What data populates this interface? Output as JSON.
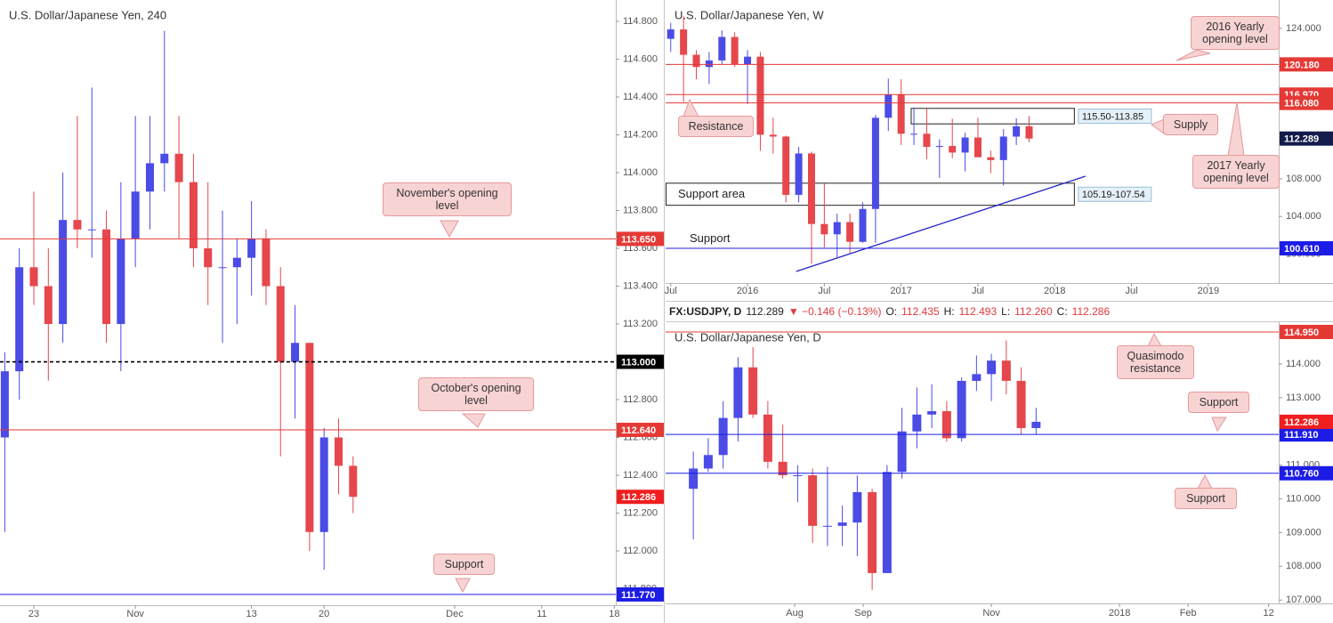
{
  "chart_data": [
    {
      "type": "candlestick",
      "title": "U.S. Dollar/Japanese Yen, 240",
      "xlim": [
        -2.33,
        40.1
      ],
      "ylim": [
        111.713,
        114.913
      ],
      "xticks": [
        {
          "value": 0,
          "label": "23"
        },
        {
          "value": 7,
          "label": "Nov"
        },
        {
          "value": 15,
          "label": "13"
        },
        {
          "value": 20,
          "label": "20"
        },
        {
          "value": 29,
          "label": "Dec"
        },
        {
          "value": 35,
          "label": "11"
        },
        {
          "value": 40,
          "label": "18"
        }
      ],
      "yticks": [
        {
          "value": 111.8,
          "label": "111.800"
        },
        {
          "value": 112.0,
          "label": "112.000"
        },
        {
          "value": 112.2,
          "label": "112.200"
        },
        {
          "value": 112.4,
          "label": "112.400"
        },
        {
          "value": 112.6,
          "label": "112.600"
        },
        {
          "value": 112.8,
          "label": "112.800"
        },
        {
          "value": 113.0,
          "label": "113.000"
        },
        {
          "value": 113.2,
          "label": "113.200"
        },
        {
          "value": 113.4,
          "label": "113.400"
        },
        {
          "value": 113.6,
          "label": "113.600"
        },
        {
          "value": 113.8,
          "label": "113.800"
        },
        {
          "value": 114.0,
          "label": "114.000"
        },
        {
          "value": 114.2,
          "label": "114.200"
        },
        {
          "value": 114.4,
          "label": "114.400"
        },
        {
          "value": 114.6,
          "label": "114.600"
        },
        {
          "value": 114.8,
          "label": "114.800"
        }
      ],
      "up_color": "#4b4be6",
      "down_color": "#e5474d",
      "candles": {
        "x": [
          -2,
          -1,
          0,
          1,
          2,
          3,
          4,
          5,
          6,
          7,
          8,
          9,
          10,
          11,
          12,
          13,
          14,
          15,
          16,
          17,
          18,
          19,
          20,
          21,
          22
        ],
        "open": [
          112.6,
          112.95,
          113.5,
          113.4,
          113.2,
          113.75,
          113.7,
          113.7,
          113.2,
          113.65,
          113.9,
          114.05,
          114.1,
          113.95,
          113.6,
          113.5,
          113.5,
          113.55,
          113.65,
          113.4,
          113.0,
          113.1,
          112.1,
          112.6,
          112.45
        ],
        "high": [
          113.05,
          113.6,
          113.9,
          113.6,
          114.0,
          114.3,
          114.45,
          113.8,
          113.95,
          114.3,
          114.3,
          114.75,
          114.3,
          114.1,
          113.95,
          113.8,
          113.65,
          113.85,
          113.7,
          113.5,
          113.3,
          113.1,
          112.65,
          112.7,
          112.5
        ],
        "low": [
          112.1,
          112.8,
          113.3,
          112.9,
          113.1,
          113.6,
          113.55,
          113.1,
          112.95,
          113.5,
          113.7,
          113.9,
          113.65,
          113.5,
          113.3,
          113.1,
          113.2,
          113.35,
          113.3,
          112.5,
          112.7,
          112.0,
          111.9,
          112.3,
          112.2
        ],
        "close": [
          112.95,
          113.5,
          113.4,
          113.2,
          113.75,
          113.7,
          113.7,
          113.2,
          113.65,
          113.9,
          114.05,
          114.1,
          113.95,
          113.6,
          113.5,
          113.5,
          113.55,
          113.65,
          113.4,
          113.0,
          113.1,
          112.1,
          112.6,
          112.45,
          112.286
        ]
      },
      "levels": [
        {
          "value": 113.65,
          "label": "113.650",
          "color": "#e53935",
          "style": "solid"
        },
        {
          "value": 113.0,
          "label": "113.000",
          "color": "#000000",
          "style": "dashed"
        },
        {
          "value": 112.64,
          "label": "112.640",
          "color": "#e53935",
          "style": "solid"
        },
        {
          "value": 111.77,
          "label": "111.770",
          "color": "#1c1ce6",
          "style": "solid"
        }
      ],
      "last": {
        "value": 112.286,
        "label": "112.286",
        "color": "#f01e1e"
      },
      "callouts": [
        "November's opening level",
        "October's opening level",
        "Support"
      ]
    },
    {
      "type": "candlestick",
      "title": "U.S. Dollar/Japanese Yen, W",
      "xlim": [
        -0.4,
        47.5
      ],
      "ylim": [
        96.92,
        127.03
      ],
      "xticks": [
        {
          "value": 0,
          "label": "Jul"
        },
        {
          "value": 6,
          "label": "2016"
        },
        {
          "value": 12,
          "label": "Jul"
        },
        {
          "value": 18,
          "label": "2017"
        },
        {
          "value": 24,
          "label": "Jul"
        },
        {
          "value": 30,
          "label": "2018"
        },
        {
          "value": 36,
          "label": "Jul"
        },
        {
          "value": 42,
          "label": "2019"
        }
      ],
      "yticks": [
        {
          "value": 100,
          "label": "100.000"
        },
        {
          "value": 104,
          "label": "104.000"
        },
        {
          "value": 108,
          "label": "108.000"
        },
        {
          "value": 112,
          "label": "112.000"
        },
        {
          "value": 116,
          "label": "116.000"
        },
        {
          "value": 120,
          "label": "120.000"
        },
        {
          "value": 124,
          "label": "124.000"
        }
      ],
      "up_color": "#4b4be6",
      "down_color": "#e5474d",
      "candles": {
        "x": [
          0,
          1,
          2,
          3,
          4,
          5,
          6,
          7,
          8,
          9,
          10,
          11,
          12,
          13,
          14,
          15,
          16,
          17,
          18,
          19,
          20,
          21,
          22,
          23,
          24,
          25,
          26,
          27,
          28
        ],
        "open": [
          122.9,
          123.9,
          121.2,
          119.9,
          120.6,
          123.1,
          120.2,
          121.0,
          112.7,
          112.5,
          106.3,
          110.7,
          103.2,
          102.1,
          103.4,
          101.3,
          104.8,
          114.5,
          117.0,
          112.8,
          112.8,
          111.4,
          111.5,
          110.8,
          112.4,
          110.3,
          110.0,
          112.5,
          113.6
        ],
        "high": [
          124.6,
          125.3,
          121.7,
          121.5,
          123.8,
          123.6,
          121.7,
          121.5,
          114.5,
          112.6,
          111.4,
          110.9,
          107.5,
          104.3,
          104.3,
          105.5,
          114.8,
          118.66,
          118.6,
          115.6,
          115.5,
          112.2,
          114.4,
          112.9,
          114.5,
          111.0,
          113.3,
          114.45,
          114.7
        ],
        "low": [
          121.5,
          116.2,
          118.6,
          118.1,
          120.2,
          119.9,
          115.97,
          110.99,
          110.7,
          105.5,
          105.5,
          99.0,
          100.7,
          99.5,
          100.1,
          101.2,
          101.2,
          113.1,
          111.6,
          111.6,
          110.1,
          108.1,
          110.2,
          108.8,
          110.6,
          108.6,
          107.3,
          111.6,
          111.9
        ],
        "close": [
          123.9,
          121.2,
          119.9,
          120.6,
          123.1,
          120.2,
          121.0,
          112.7,
          112.5,
          106.3,
          110.7,
          103.2,
          102.1,
          103.4,
          101.3,
          104.8,
          114.5,
          117.0,
          112.8,
          112.8,
          111.4,
          111.5,
          110.8,
          112.4,
          110.3,
          110.0,
          112.5,
          113.6,
          112.289
        ]
      },
      "levels": [
        {
          "value": 120.18,
          "label": "120.180",
          "color": "#e53935",
          "style": "solid"
        },
        {
          "value": 116.97,
          "label": "116.970",
          "color": "#e53935",
          "style": "solid"
        },
        {
          "value": 116.08,
          "label": "116.080",
          "color": "#e53935",
          "style": "solid"
        },
        {
          "value": 100.61,
          "label": "100.610",
          "color": "#1c1ce6",
          "style": "solid"
        }
      ],
      "last": {
        "value": 112.289,
        "label": "112.289",
        "color": "#131c4a"
      },
      "zones": [
        {
          "low": 113.85,
          "high": 115.5,
          "x": [
            18.75,
            31.5
          ],
          "label": "115.50-113.85"
        },
        {
          "low": 105.19,
          "high": 107.54,
          "x": [
            -0.4,
            31.5
          ],
          "label": "105.19-107.54"
        }
      ],
      "trendline": {
        "x": [
          9.8,
          32.4
        ],
        "y": [
          98.15,
          108.28
        ],
        "color": "#2424c8"
      },
      "labels": [
        "Support area",
        "Support"
      ],
      "callouts": [
        "Resistance",
        "2016 Yearly opening level",
        "Supply",
        "2017 Yearly opening level"
      ]
    },
    {
      "type": "candlestick",
      "title": "U.S. Dollar/Japanese Yen, D",
      "xlim": [
        -43.3,
        162.4
      ],
      "ylim": [
        106.9,
        115.24
      ],
      "xticks": [
        {
          "value": 0,
          "label": "Aug"
        },
        {
          "value": 23,
          "label": "Sep"
        },
        {
          "value": 66,
          "label": "Nov"
        },
        {
          "value": 109,
          "label": "2018"
        },
        {
          "value": 132,
          "label": "Feb"
        },
        {
          "value": 159,
          "label": "12"
        }
      ],
      "yticks": [
        {
          "value": 107,
          "label": "107.000"
        },
        {
          "value": 108,
          "label": "108.000"
        },
        {
          "value": 109,
          "label": "109.000"
        },
        {
          "value": 110,
          "label": "110.000"
        },
        {
          "value": 111,
          "label": "111.000"
        },
        {
          "value": 112,
          "label": "112.000"
        },
        {
          "value": 113,
          "label": "113.000"
        },
        {
          "value": 114,
          "label": "114.000"
        }
      ],
      "up_color": "#4b4be6",
      "down_color": "#e5474d",
      "candles": {
        "x": [
          -34,
          -29,
          -24,
          -19,
          -14,
          -9,
          -4,
          1,
          6,
          11,
          16,
          21,
          26,
          31,
          36,
          41,
          46,
          51,
          56,
          61,
          66,
          71,
          76,
          81
        ],
        "open": [
          110.3,
          110.9,
          111.3,
          112.4,
          113.9,
          112.5,
          111.1,
          110.7,
          110.7,
          109.2,
          109.2,
          109.3,
          110.2,
          107.8,
          110.8,
          112.0,
          112.5,
          112.6,
          111.8,
          113.5,
          113.7,
          114.1,
          113.5,
          112.1
        ],
        "high": [
          111.4,
          111.8,
          112.9,
          114.2,
          114.5,
          112.9,
          112.2,
          111.0,
          110.9,
          110.95,
          109.8,
          110.7,
          110.3,
          111.0,
          112.7,
          113.3,
          113.4,
          112.9,
          113.6,
          114.25,
          114.3,
          114.7,
          113.9,
          112.7
        ],
        "low": [
          108.8,
          110.8,
          110.9,
          111.7,
          112.4,
          110.9,
          110.6,
          109.9,
          108.7,
          108.6,
          108.6,
          108.3,
          107.3,
          107.8,
          110.6,
          111.5,
          112.1,
          111.7,
          111.7,
          113.2,
          112.9,
          113.1,
          111.9,
          111.9
        ],
        "close": [
          110.9,
          111.3,
          112.4,
          113.9,
          112.5,
          111.1,
          110.7,
          110.7,
          109.2,
          109.2,
          109.3,
          110.2,
          107.8,
          110.8,
          112.0,
          112.5,
          112.6,
          111.8,
          113.5,
          113.7,
          114.1,
          113.5,
          112.1,
          112.286
        ]
      },
      "levels": [
        {
          "value": 114.95,
          "label": "114.950",
          "color": "#e53935",
          "style": "solid"
        },
        {
          "value": 111.91,
          "label": "111.910",
          "color": "#1c1ce6",
          "style": "solid"
        },
        {
          "value": 110.76,
          "label": "110.760",
          "color": "#1c1ce6",
          "style": "solid"
        }
      ],
      "last": {
        "value": 112.286,
        "label": "112.286",
        "color": "#f01e1e"
      },
      "callouts": [
        "Quasimodo resistance",
        "Support",
        "Support"
      ]
    }
  ],
  "header": {
    "symbol": "FX:USDJPY, D",
    "last": "112.289",
    "change": "▼ −0.146 (−0.13%)",
    "open_label": "O:",
    "open": "112.435",
    "high_label": "H:",
    "high": "112.493",
    "low_label": "L:",
    "low": "112.260",
    "close_label": "C:",
    "close": "112.286"
  }
}
